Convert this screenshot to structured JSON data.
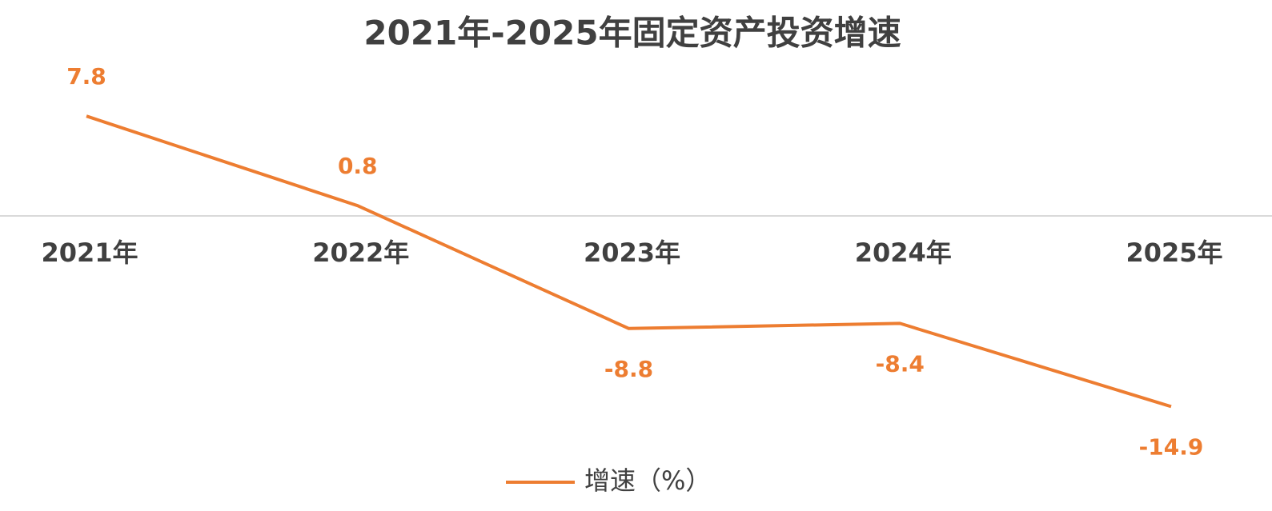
{
  "chart_data": {
    "type": "line",
    "title": "2021年-2025年固定资产投资增速",
    "categories": [
      "2021年",
      "2022年",
      "2023年",
      "2024年",
      "2025年"
    ],
    "series": [
      {
        "name": "增速（%）",
        "color": "#ed7d31",
        "values": [
          7.8,
          0.8,
          -8.8,
          -8.4,
          -14.9
        ]
      }
    ],
    "ylim": [
      -16,
      12
    ]
  }
}
